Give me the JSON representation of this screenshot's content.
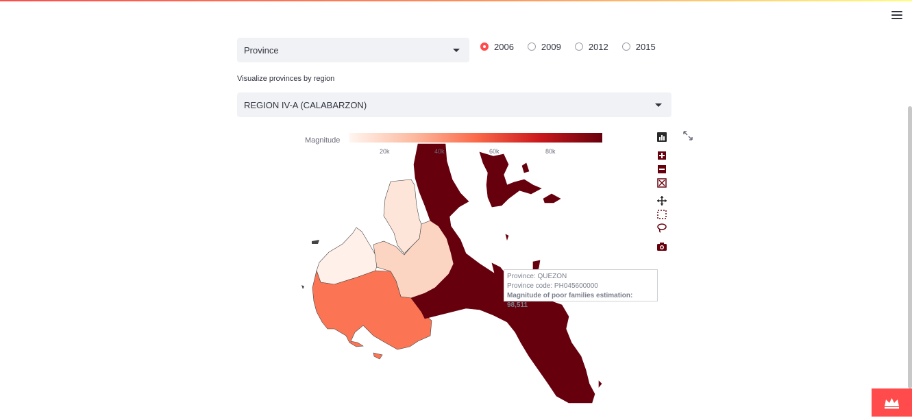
{
  "top_cut_label": "",
  "level_select": {
    "value": "Province"
  },
  "year_radios": [
    {
      "label": "2006",
      "checked": true
    },
    {
      "label": "2009",
      "checked": false
    },
    {
      "label": "2012",
      "checked": false
    },
    {
      "label": "2015",
      "checked": false
    }
  ],
  "region_label": "Visualize provinces by region",
  "region_select": {
    "value": "REGION IV-A (CALABARZON)"
  },
  "map": {
    "colorbar": {
      "title": "Magnitude",
      "ticks": [
        "20k",
        "40k",
        "60k",
        "80k"
      ],
      "colorscale": [
        "#fff5f0",
        "#fcbba1",
        "#fb6a4a",
        "#cb181d",
        "#67000d"
      ]
    },
    "province_colors": {
      "quezon": "#67000d",
      "batangas": "#fb7554",
      "cavite": "#fff1ea",
      "laguna": "#fbd4c2",
      "rizal": "#fee5d9"
    },
    "tooltip": {
      "province": "Province: QUEZON",
      "code": "Province code: PH045600000",
      "magnitude": "Magnitude of poor families estimation: 98,511"
    }
  },
  "modebar": {
    "icons": [
      "bar-chart-icon",
      "zoom-in-icon",
      "zoom-out-icon",
      "reset-icon",
      "pan-icon",
      "box-select-icon",
      "lasso-icon",
      "camera-icon"
    ],
    "color": "#67000d"
  },
  "accent_color": "#ff4b4b"
}
